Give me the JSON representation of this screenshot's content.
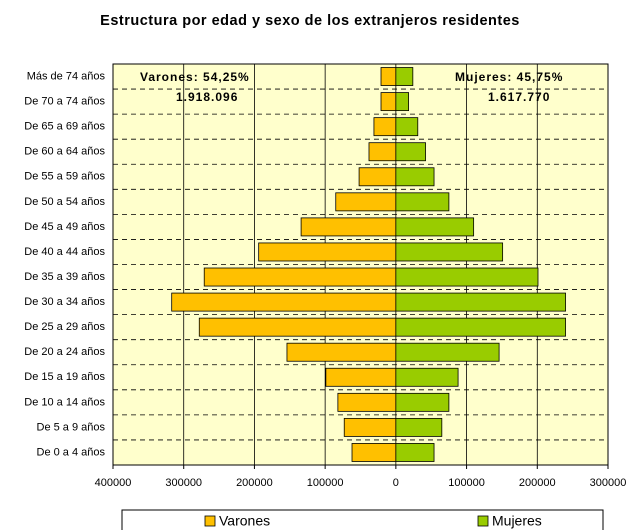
{
  "chart_data": {
    "type": "pyramid",
    "title": "Estructura por edad y sexo de los extranjeros residentes",
    "annotations": [
      "Varones: 54,25%",
      "1.918.096",
      "Mujeres: 45,75%",
      "1.617.770"
    ],
    "categories": [
      "Más de 74 años",
      "De 70 a 74 años",
      "De 65 a 69 años",
      "De 60 a 64 años",
      "De 55 a 59 años",
      "De 50 a 54 años",
      "De 45 a 49 años",
      "De 40 a 44 años",
      "De 35 a 39 años",
      "De 30 a 34 años",
      "De 25 a 29 años",
      "De 20 a 24 años",
      "De 15 a 19 años",
      "De 10 a 14 años",
      "De 5 a 9 años",
      "De 0 a 4 años"
    ],
    "series": [
      {
        "name": "Varones",
        "color": "#ffc000",
        "values": [
          -21000,
          -21000,
          -31000,
          -38000,
          -52000,
          -85000,
          -134000,
          -194000,
          -271000,
          -317000,
          -278000,
          -154000,
          -99000,
          -82000,
          -73000,
          -62000
        ]
      },
      {
        "name": "Mujeres",
        "color": "#99cc00",
        "values": [
          24000,
          18000,
          31000,
          42000,
          54000,
          75000,
          110000,
          151000,
          201000,
          240000,
          240000,
          146000,
          88000,
          75000,
          65000,
          54000
        ]
      }
    ],
    "xlim": [
      -400000,
      300000
    ],
    "xticks": [
      {
        "value": -400000,
        "label": "400000"
      },
      {
        "value": -300000,
        "label": "300000"
      },
      {
        "value": -200000,
        "label": "200000"
      },
      {
        "value": -100000,
        "label": "100000"
      },
      0,
      100000,
      200000,
      300000
    ],
    "grid": true,
    "legend": "bottom"
  }
}
